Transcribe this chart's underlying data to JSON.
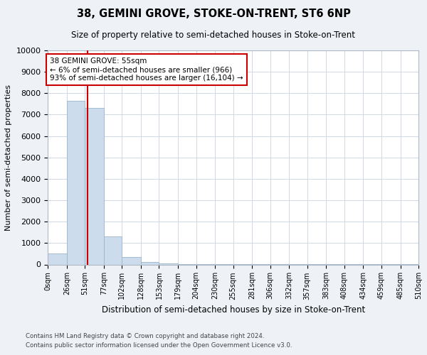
{
  "title": "38, GEMINI GROVE, STOKE-ON-TRENT, ST6 6NP",
  "subtitle": "Size of property relative to semi-detached houses in Stoke-on-Trent",
  "xlabel": "Distribution of semi-detached houses by size in Stoke-on-Trent",
  "ylabel": "Number of semi-detached properties",
  "footnote1": "Contains HM Land Registry data © Crown copyright and database right 2024.",
  "footnote2": "Contains public sector information licensed under the Open Government Licence v3.0.",
  "bin_edges": [
    0,
    26,
    51,
    77,
    102,
    128,
    153,
    179,
    204,
    230,
    255,
    281,
    306,
    332,
    357,
    383,
    408,
    434,
    459,
    485,
    510
  ],
  "bar_heights": [
    500,
    7650,
    7300,
    1300,
    350,
    120,
    50,
    25,
    15,
    10,
    8,
    5,
    4,
    3,
    2,
    2,
    1,
    1,
    1,
    1
  ],
  "bar_color": "#cddcec",
  "bar_edge_color": "#9ab5cc",
  "property_size": 55,
  "smaller_pct": 6,
  "smaller_count": 966,
  "larger_pct": 93,
  "larger_count": 16104,
  "annotation_line_color": "#cc0000",
  "annotation_box_color": "#cc0000",
  "ylim": [
    0,
    10000
  ],
  "yticks": [
    0,
    1000,
    2000,
    3000,
    4000,
    5000,
    6000,
    7000,
    8000,
    9000,
    10000
  ],
  "background_color": "#eef2f7",
  "plot_background": "#ffffff",
  "grid_color": "#d0d8e4"
}
